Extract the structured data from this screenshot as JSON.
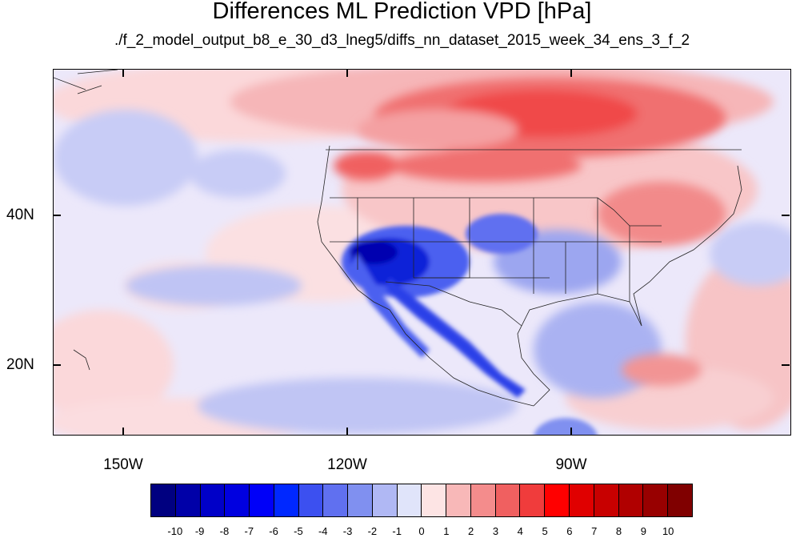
{
  "title": "Differences ML Prediction VPD [hPa]",
  "subtitle": "./f_2_model_output_b8_e_30_d3_lneg5/diffs_nn_dataset_2015_week_34_ens_3_f_2",
  "map": {
    "region": "North America and eastern Pacific",
    "lat_labels": [
      "40N",
      "20N"
    ],
    "lon_labels": [
      "150W",
      "120W",
      "90W"
    ],
    "background_color": "#f0f0ff"
  },
  "colorbar": {
    "colors": [
      "#000080",
      "#0000a8",
      "#0000c8",
      "#0000e0",
      "#0000f8",
      "#0028ff",
      "#3c50f0",
      "#6070f0",
      "#8090f0",
      "#b0b8f4",
      "#e0e4fa",
      "#fde4e4",
      "#f8b8b8",
      "#f48c8c",
      "#f06060",
      "#f03c3c",
      "#ff0000",
      "#e00000",
      "#c80000",
      "#b00000",
      "#980000",
      "#800000"
    ],
    "labels": [
      "-10",
      "-9",
      "-8",
      "-7",
      "-6",
      "-5",
      "-4",
      "-3",
      "-2",
      "-1",
      "0",
      "1",
      "2",
      "3",
      "4",
      "5",
      "6",
      "7",
      "8",
      "9",
      "10"
    ]
  }
}
